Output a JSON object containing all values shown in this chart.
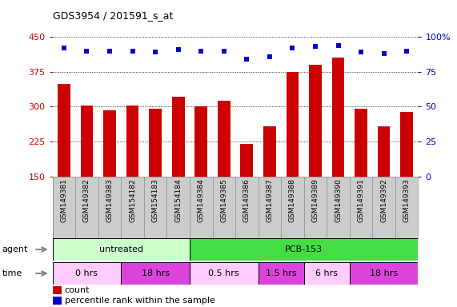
{
  "title": "GDS3954 / 201591_s_at",
  "samples": [
    "GSM149381",
    "GSM149382",
    "GSM149383",
    "GSM154182",
    "GSM154183",
    "GSM154184",
    "GSM149384",
    "GSM149385",
    "GSM149386",
    "GSM149387",
    "GSM149388",
    "GSM149389",
    "GSM149390",
    "GSM149391",
    "GSM149392",
    "GSM149393"
  ],
  "counts": [
    348,
    302,
    293,
    302,
    296,
    322,
    300,
    312,
    220,
    258,
    375,
    390,
    405,
    296,
    258,
    288
  ],
  "percentile_ranks": [
    92,
    90,
    90,
    90,
    89,
    91,
    90,
    90,
    84,
    86,
    92,
    93,
    94,
    89,
    88,
    90
  ],
  "ylim_left": [
    150,
    450
  ],
  "ylim_right": [
    0,
    100
  ],
  "yticks_left": [
    150,
    225,
    300,
    375,
    450
  ],
  "yticks_right": [
    0,
    25,
    50,
    75,
    100
  ],
  "bar_color": "#cc0000",
  "dot_color": "#0000cc",
  "grid_color": "#000000",
  "background_color": "#ffffff",
  "agent_groups": [
    {
      "label": "untreated",
      "start": 0,
      "end": 6,
      "color": "#ccffcc"
    },
    {
      "label": "PCB-153",
      "start": 6,
      "end": 16,
      "color": "#44dd44"
    }
  ],
  "time_groups": [
    {
      "label": "0 hrs",
      "start": 0,
      "end": 3,
      "color": "#ffccff"
    },
    {
      "label": "18 hrs",
      "start": 3,
      "end": 6,
      "color": "#dd44dd"
    },
    {
      "label": "0.5 hrs",
      "start": 6,
      "end": 9,
      "color": "#ffccff"
    },
    {
      "label": "1.5 hrs",
      "start": 9,
      "end": 11,
      "color": "#dd44dd"
    },
    {
      "label": "6 hrs",
      "start": 11,
      "end": 13,
      "color": "#ffccff"
    },
    {
      "label": "18 hrs",
      "start": 13,
      "end": 16,
      "color": "#dd44dd"
    }
  ],
  "legend_count_color": "#cc0000",
  "legend_dot_color": "#0000cc",
  "sample_bg_color": "#cccccc",
  "sample_border_color": "#888888"
}
